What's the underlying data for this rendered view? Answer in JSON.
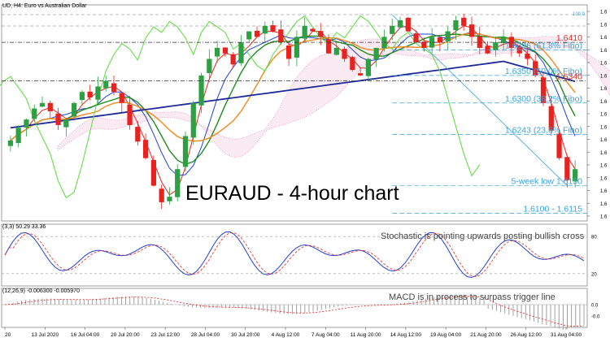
{
  "header": {
    "symbol_label": "UD, H4: Euro vs Australian Dollar",
    "stoch_label": "(3,3) 50.29 33.36",
    "macd_label": "(12,26,9) -0.006300 -0.005970"
  },
  "chart_data": {
    "type": "candlestick",
    "title": "EURAUD - 4-hour chart",
    "ylim": [
      1.6086,
      1.6478
    ],
    "price_scale_ticks": [
      "1.6",
      "1.6",
      "1.6",
      "1.6",
      "1.6",
      "1.6",
      "1.6",
      "1.6",
      "1.6",
      "1.6",
      "1.6",
      "1.6",
      "1.6",
      "1.6",
      "1.6",
      "1.6",
      "1.6"
    ],
    "x_tick_labels": [
      "20",
      "13 Jul 2020",
      "16 Jul 04:00",
      "20 Jul 20:00",
      "23 Jul 12:00",
      "28 Jul 04:00",
      "30 Jul 20:00",
      "4 Aug 12:00",
      "7 Aug 04:00",
      "11 Aug 20:00",
      "14 Aug 12:00",
      "19 Aug 04:00",
      "21 Aug 20:00",
      "26 Aug 12:00",
      "31 Aug 04:00"
    ],
    "levels": [
      {
        "price": 1.641,
        "label": "1.6410",
        "color": "#e8231f"
      },
      {
        "price": 1.6396,
        "label": "1.6396 (61.8% Fibo)",
        "color": "#3aa3dc"
      },
      {
        "price": 1.635,
        "label": "1.6350 (50.0% Fibo)",
        "color": "#3aa3dc"
      },
      {
        "price": 1.634,
        "label": "1.6340",
        "color": "#e8231f"
      },
      {
        "price": 1.63,
        "label": "1.6300 (38.2% Fibo)",
        "color": "#3aa3dc"
      },
      {
        "price": 1.6243,
        "label": "1.6243 (23.6% Fibo)",
        "color": "#3aa3dc"
      },
      {
        "price": 1.615,
        "label": "5-week low 1.6150",
        "color": "#3aa3dc"
      },
      {
        "price": 1.61,
        "label": "1.6100 - 1.6115",
        "color": "#3aa3dc"
      }
    ],
    "fibo_top_label": "100.0",
    "closes": [
      1.6232,
      1.6255,
      1.627,
      1.629,
      1.63,
      1.6285,
      1.626,
      1.627,
      1.63,
      1.632,
      1.631,
      1.633,
      1.634,
      1.632,
      1.63,
      1.626,
      1.623,
      1.62,
      1.615,
      1.612,
      1.613,
      1.618,
      1.624,
      1.63,
      1.635,
      1.638,
      1.64,
      1.639,
      1.637,
      1.641,
      1.643,
      1.642,
      1.644,
      1.643,
      1.641,
      1.638,
      1.642,
      1.644,
      1.643,
      1.642,
      1.639,
      1.64,
      1.638,
      1.636,
      1.635,
      1.638,
      1.64,
      1.642,
      1.644,
      1.645,
      1.643,
      1.641,
      1.64,
      1.642,
      1.641,
      1.643,
      1.645,
      1.644,
      1.642,
      1.64,
      1.639,
      1.641,
      1.642,
      1.64,
      1.639,
      1.638,
      1.635,
      1.63,
      1.625,
      1.62,
      1.616,
      1.618
    ],
    "indicators": {
      "stochastic_note": "Stochastic is pointing upwards posting bullish cross",
      "stochastic_levels": [
        "80",
        "20"
      ],
      "macd_note": "MACD is in process to surpass trigger line",
      "macd_ticks": [
        "0.0",
        "-0.0"
      ]
    },
    "colors": {
      "bull_candle": "#2ea043",
      "bear_candle": "#e8231f",
      "sma_20": "#1f8a1f",
      "sma_50": "#f08a1c",
      "sma_200": "#1f2a9a",
      "tenkan": "#e8231f",
      "kijun": "#2040d0",
      "chikou": "#5adb3a",
      "cloud": "#e38ab8",
      "stoch_main": "#2040d0",
      "stoch_signal": "#e8231f",
      "macd_hist": "#a0a0a0",
      "macd_signal": "#e8231f"
    }
  }
}
